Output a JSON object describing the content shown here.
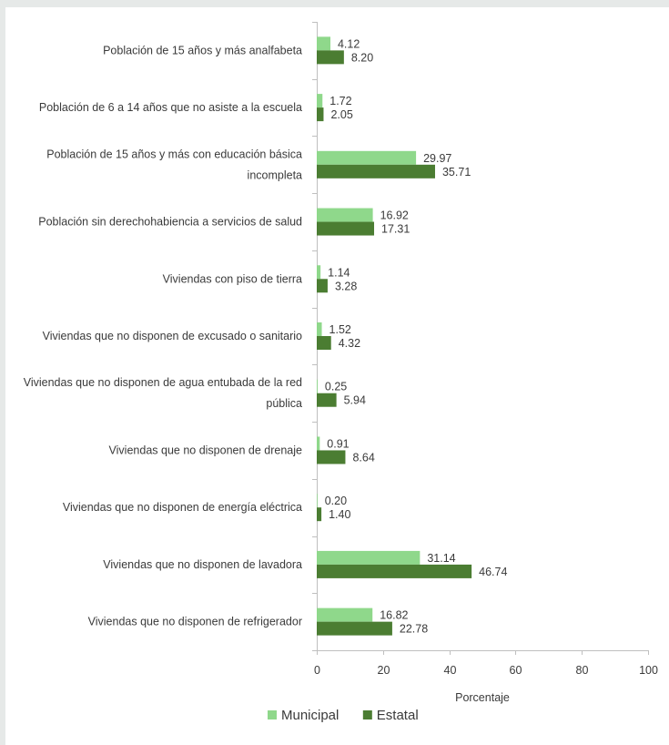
{
  "chart_data": {
    "type": "bar",
    "orientation": "horizontal",
    "categories": [
      [
        "Población de 15 años y más analfabeta"
      ],
      [
        "Población de 6 a 14 años que no asiste a la escuela"
      ],
      [
        "Población de 15 años y más con educación básica",
        "incompleta"
      ],
      [
        "Población sin derechohabiencia a servicios de salud"
      ],
      [
        "Viviendas con piso de tierra"
      ],
      [
        "Viviendas que no disponen de excusado o sanitario"
      ],
      [
        "Viviendas que no disponen de agua entubada de la red",
        "pública"
      ],
      [
        "Viviendas que no disponen de drenaje"
      ],
      [
        "Viviendas que no disponen de energía eléctrica"
      ],
      [
        "Viviendas que no disponen de lavadora"
      ],
      [
        "Viviendas que no disponen de refrigerador"
      ]
    ],
    "series": [
      {
        "name": "Municipal",
        "color": "#8fd88b",
        "values": [
          4.12,
          1.72,
          29.97,
          16.92,
          1.14,
          1.52,
          0.25,
          0.91,
          0.2,
          31.14,
          16.82
        ],
        "labels": [
          "4.12",
          "1.72",
          "29.97",
          "16.92",
          "1.14",
          "1.52",
          "0.25",
          "0.91",
          "0.20",
          "31.14",
          "16.82"
        ]
      },
      {
        "name": "Estatal",
        "color": "#4b7d32",
        "values": [
          8.2,
          2.05,
          35.71,
          17.31,
          3.28,
          4.32,
          5.94,
          8.64,
          1.4,
          46.74,
          22.78
        ],
        "labels": [
          "8.20",
          "2.05",
          "35.71",
          "17.31",
          "3.28",
          "4.32",
          "5.94",
          "8.64",
          "1.40",
          "46.74",
          "22.78"
        ]
      }
    ],
    "xlabel": "Porcentaje",
    "xlim": [
      0,
      100
    ],
    "xticks": [
      0,
      20,
      40,
      60,
      80,
      100
    ],
    "grid": false,
    "legend_position": "bottom"
  }
}
